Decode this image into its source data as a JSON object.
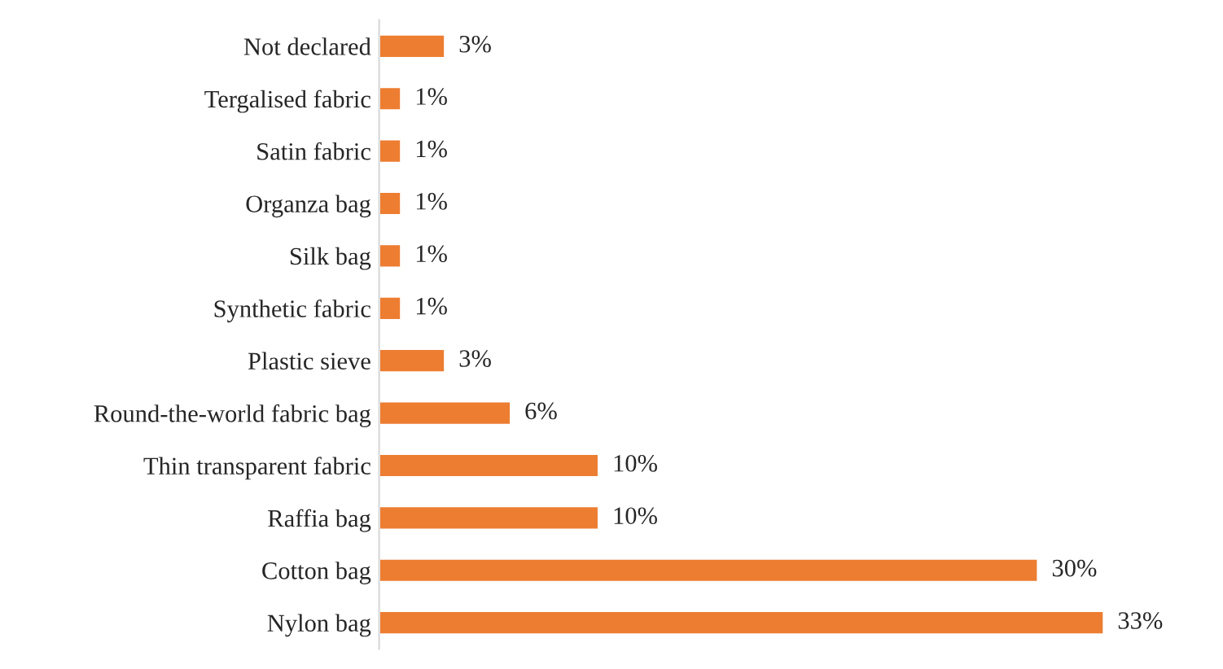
{
  "chart_data": {
    "type": "bar",
    "orientation": "horizontal",
    "categories": [
      "Not declared",
      "Tergalised fabric",
      "Satin fabric",
      "Organza bag",
      "Silk bag",
      "Synthetic fabric",
      "Plastic sieve",
      "Round-the-world fabric bag",
      "Thin transparent fabric",
      "Raffia bag",
      "Cotton bag",
      "Nylon bag"
    ],
    "values": [
      3,
      1,
      1,
      1,
      1,
      1,
      3,
      6,
      10,
      10,
      30,
      33
    ],
    "value_labels": [
      "3%",
      "1%",
      "1%",
      "1%",
      "1%",
      "1%",
      "3%",
      "6%",
      "10%",
      "10%",
      "30%",
      "33%"
    ],
    "color": "#ed7d31",
    "grid": false,
    "legend": false
  }
}
